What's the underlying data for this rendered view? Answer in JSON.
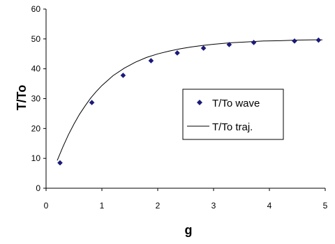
{
  "chart_data": {
    "type": "scatter",
    "xlabel": "g",
    "ylabel": "T/To",
    "xlim": [
      0,
      5
    ],
    "ylim": [
      0,
      60
    ],
    "x_ticks": [
      "0",
      "1",
      "2",
      "3",
      "4",
      "5"
    ],
    "y_ticks": [
      "0",
      "10",
      "20",
      "30",
      "40",
      "50",
      "60"
    ],
    "grid": false,
    "legend_position": "center-right",
    "series": [
      {
        "name": "T/To wave",
        "kind": "markers",
        "marker": "diamond",
        "color": "#1a1a7a",
        "x": [
          0.25,
          0.82,
          1.38,
          1.88,
          2.35,
          2.82,
          3.28,
          3.72,
          4.45,
          4.88
        ],
        "y": [
          8.5,
          28.7,
          37.8,
          42.7,
          45.3,
          46.9,
          48.1,
          48.8,
          49.3,
          49.6
        ]
      },
      {
        "name": "T/To traj.",
        "kind": "line",
        "color": "#000000",
        "x": [
          0.2,
          0.3,
          0.4,
          0.5,
          0.6,
          0.7,
          0.8,
          0.9,
          1.0,
          1.2,
          1.4,
          1.6,
          1.8,
          2.0,
          2.2,
          2.4,
          2.6,
          2.8,
          3.0,
          3.3,
          3.6,
          3.9,
          4.2,
          4.5,
          4.8,
          4.95
        ],
        "y": [
          9.3,
          13.8,
          17.9,
          21.5,
          24.8,
          27.6,
          30.2,
          32.4,
          34.4,
          37.7,
          40.2,
          42.2,
          43.8,
          45.0,
          45.9,
          46.7,
          47.3,
          47.8,
          48.2,
          48.7,
          49.0,
          49.3,
          49.4,
          49.6,
          49.7,
          49.7
        ]
      }
    ]
  }
}
